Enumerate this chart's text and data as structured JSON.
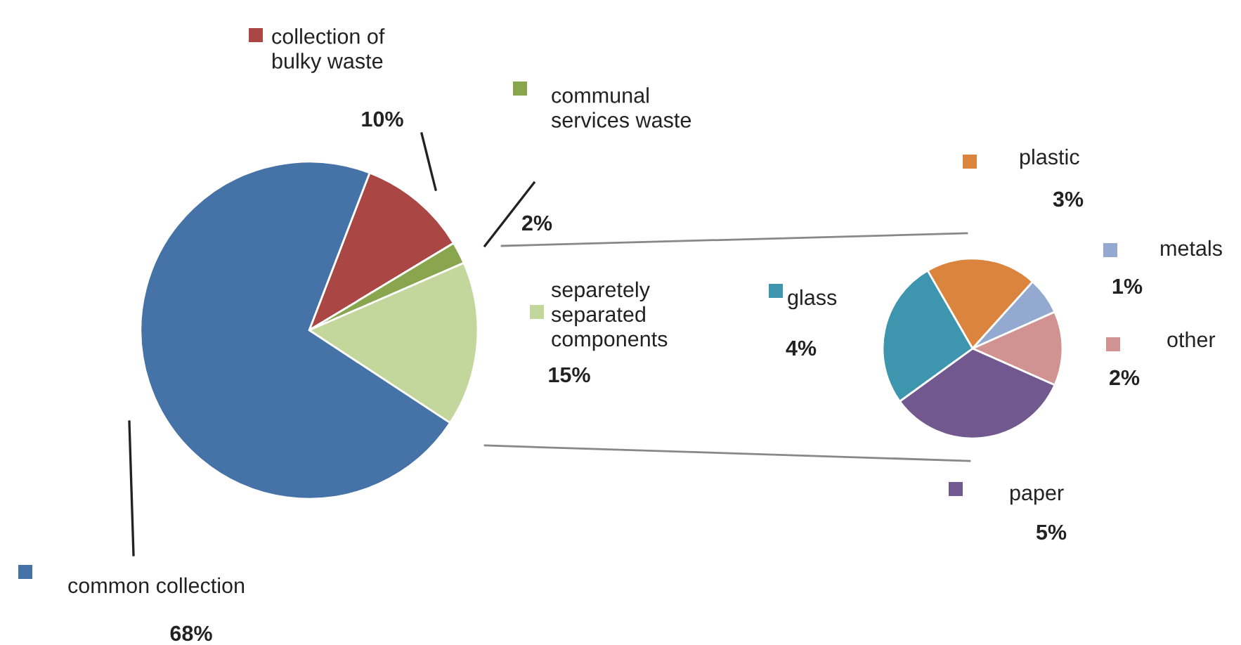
{
  "chart_data": [
    {
      "type": "pie",
      "categories": [
        "collection of bulky waste",
        "communal services waste",
        "separetely separated components",
        "common collection"
      ],
      "values": [
        10,
        2,
        15,
        68
      ],
      "colors": [
        "#aa4643",
        "#89a54e",
        "#c3d69b",
        "#4572a7"
      ],
      "value_labels": [
        "10%",
        "2%",
        "15%",
        "68%"
      ],
      "legend": "right"
    },
    {
      "type": "pie",
      "categories": [
        "plastic",
        "metals",
        "other",
        "paper",
        "glass"
      ],
      "values": [
        3,
        1,
        2,
        5,
        4
      ],
      "colors": [
        "#db843d",
        "#93a9cf",
        "#d19392",
        "#71588f",
        "#3d96ae"
      ],
      "value_labels": [
        "3%",
        "1%",
        "2%",
        "5%",
        "4%"
      ],
      "legend": "right"
    }
  ]
}
